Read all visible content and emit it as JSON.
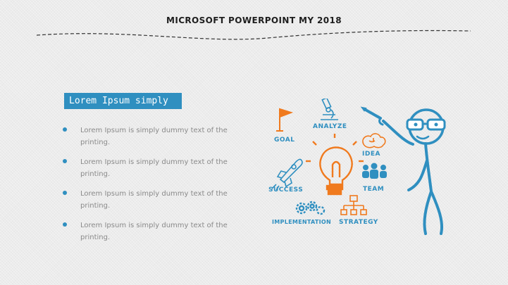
{
  "slide": {
    "title": "MICROSOFT POWERPOINT MY 2018",
    "heading": "Lorem Ipsum simply",
    "bullets": [
      "Lorem Ipsum is simply dummy text of the printing.",
      "Lorem Ipsum is simply dummy text of the printing.",
      "Lorem Ipsum is simply dummy text of the printing.",
      "Lorem Ipsum is simply dummy text of the printing."
    ]
  },
  "illustration": {
    "labels": {
      "goal": "GOAL",
      "analyze": "ANALYZE",
      "idea": "IDEA",
      "success": "SUCCESS",
      "team": "TEAM",
      "implementation": "IMPLEMENTATION",
      "strategy": "STRATEGY"
    },
    "icons": [
      "flag-icon",
      "microscope-icon",
      "brain-icon",
      "rocket-icon",
      "lightbulb-icon",
      "team-icon",
      "gears-icon",
      "org-chart-icon",
      "stick-figure-icon"
    ]
  },
  "colors": {
    "accent_blue": "#2f8fc0",
    "accent_orange": "#f07a1e",
    "heading_bg": "#2f8fc0",
    "bullet_text": "#8a8a8a",
    "title_text": "#1e1e1e"
  }
}
